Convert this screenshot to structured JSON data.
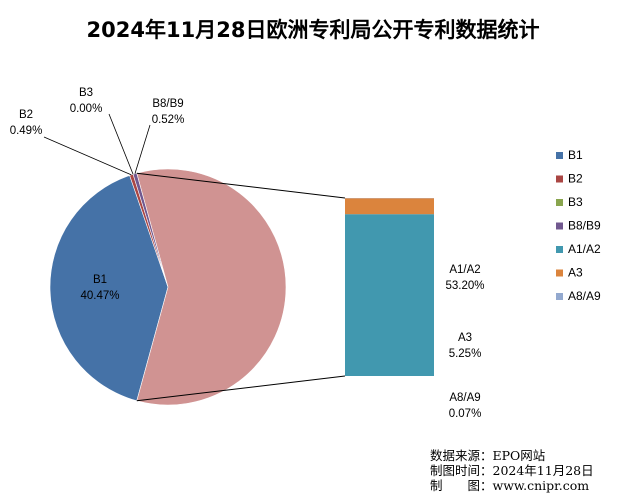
{
  "chart_data": {
    "type": "pie",
    "subtype": "pie-of-bar",
    "title": "2024年11月28日欧洲专利局公开专利数据统计",
    "slices": [
      {
        "name": "B1",
        "value": 40.47,
        "label": "40.47%",
        "color": "#4572A7"
      },
      {
        "name": "B2",
        "value": 0.49,
        "label": "0.49%",
        "color": "#AA4643"
      },
      {
        "name": "B3",
        "value": 0.0,
        "label": "0.00%",
        "color": "#89A54E"
      },
      {
        "name": "B8/B9",
        "value": 0.52,
        "label": "0.52%",
        "color": "#71588F"
      }
    ],
    "bar_breakdown": [
      {
        "name": "A1/A2",
        "value": 53.2,
        "label": "53.20%",
        "color": "#4198AF"
      },
      {
        "name": "A3",
        "value": 5.25,
        "label": "5.25%",
        "color": "#DB843D"
      },
      {
        "name": "A8/A9",
        "value": 0.07,
        "label": "0.07%",
        "color": "#93A9CF"
      }
    ],
    "other_slice_color": "#D09392",
    "legend": [
      "B1",
      "B2",
      "B3",
      "B8/B9",
      "A1/A2",
      "A3",
      "A8/A9"
    ],
    "legend_position": "right"
  },
  "source": {
    "line1": "数据来源：EPO网站",
    "line2": "制图时间：2024年11月28日",
    "line3": "制　　图：www.cnipr.com"
  }
}
